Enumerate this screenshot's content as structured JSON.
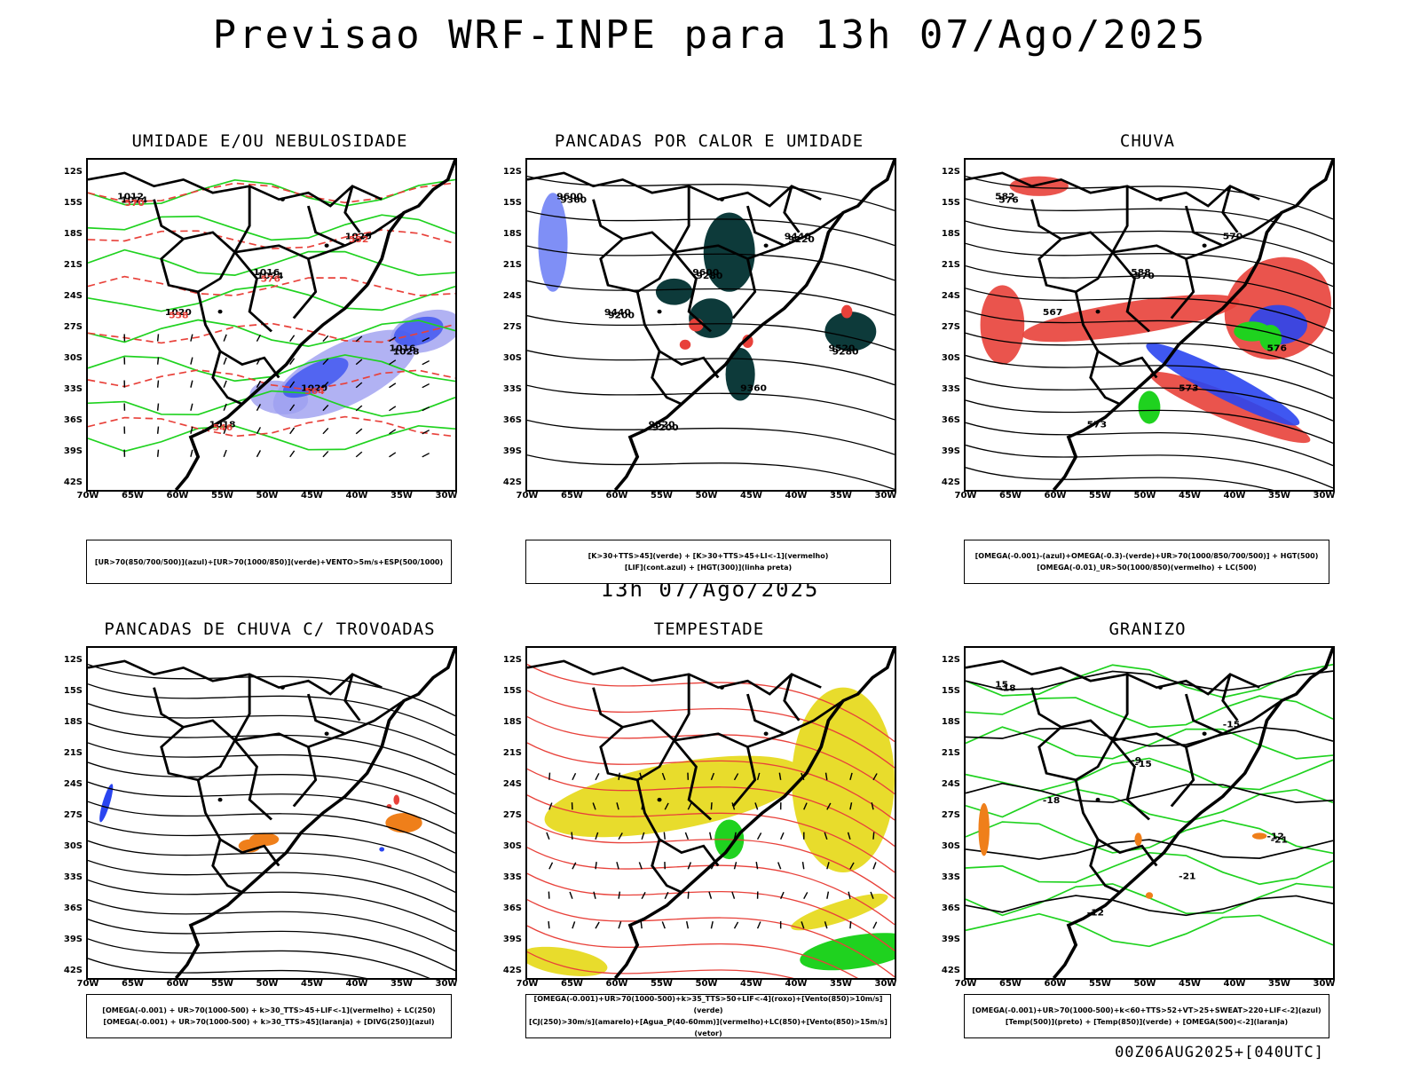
{
  "title": "Previsao WRF-INPE  para 13h 07/Ago/2025",
  "mid_title": "13h 07/Ago/2025",
  "footer": "00Z06AUG2025+[040UTC]",
  "lat_labels": [
    "12S",
    "15S",
    "18S",
    "21S",
    "24S",
    "27S",
    "30S",
    "33S",
    "36S",
    "39S",
    "42S"
  ],
  "lon_labels": [
    "70W",
    "65W",
    "60W",
    "55W",
    "50W",
    "45W",
    "40W",
    "35W",
    "30W"
  ],
  "panels": [
    {
      "title": "UMIDADE E/OU NEBULOSIDADE",
      "legend": [
        "[UR>70(850/700/500)](azul)+[UR>70(1000/850)](verde)+VENTO>5m/s+ESP(500/1000)"
      ],
      "labels": [
        "1012",
        "1016",
        "1016",
        "1018",
        "1020",
        "1020",
        "1020",
        "1024",
        "1024",
        "1028",
        "546",
        "552",
        "558",
        "564",
        "570",
        "576"
      ]
    },
    {
      "title": "PANCADAS POR CALOR E UMIDADE",
      "legend": [
        "[K>30+TTS>45](verde) + [K>30+TTS>45+LI<-1](vermelho)",
        "[LIF](cont.azul) + [HGT(300)](linha preta)"
      ],
      "labels": [
        "9600",
        "9600",
        "9520",
        "9520",
        "9440",
        "9440",
        "9360",
        "9360",
        "9280",
        "9280",
        "9200",
        "9120",
        "9200"
      ]
    },
    {
      "title": "CHUVA",
      "legend": [
        "[OMEGA(-0.001)-(azul)+OMEGA(-0.3)-(verde)+UR>70(1000/850/700/500)] + HGT(500)",
        "[OMEGA(-0.01)_UR>50(1000/850)(vermelho) + LC(500)"
      ],
      "labels": [
        "582",
        "588",
        "576",
        "573",
        "570",
        "567",
        "573",
        "576",
        "570"
      ]
    },
    {
      "title": "PANCADAS DE CHUVA C/ TROVOADAS",
      "legend": [
        "[OMEGA(-0.001) + UR>70(1000-500) + k>30_TTS>45+LIF<-1](vermelho) + LC(250)",
        "[OMEGA(-0.001) + UR>70(1000-500) + k>30_TTS>45](laranja) + [DIVG(250)](azul)"
      ],
      "labels": []
    },
    {
      "title": "TEMPESTADE",
      "legend": [
        "[OMEGA(-0.001)+UR>70(1000-500)+k>35_TTS>50+LIF<-4](roxo)+[Vento(850)>10m/s](verde)",
        "[CJ(250)>30m/s](amarelo)+[Agua_P(40-60mm)](vermelho)+LC(850)+[Vento(850)>15m/s](vetor)"
      ],
      "labels": []
    },
    {
      "title": "GRANIZO",
      "legend": [
        "[OMEGA(-0.001)+UR>70(1000-500)+k<60+TTS>52+VT>25+SWEAT>220+LIF<-2](azul)",
        "[Temp(500)](preto) + [Temp(850)](verde) + [OMEGA(500)<-2](laranja)"
      ],
      "labels": [
        "15",
        "-9",
        "-12",
        "-12",
        "-15",
        "-18",
        "-21",
        "-18",
        "-15",
        "-21"
      ]
    }
  ],
  "colors": {
    "red": "#e8413a",
    "green": "#1fd21f",
    "blue": "#2a45f0",
    "lightblue": "#9d9ff0",
    "darkteal": "#0d3a3a",
    "yellow": "#e8dc2c",
    "orange": "#ef7f1a",
    "black": "#000000"
  }
}
